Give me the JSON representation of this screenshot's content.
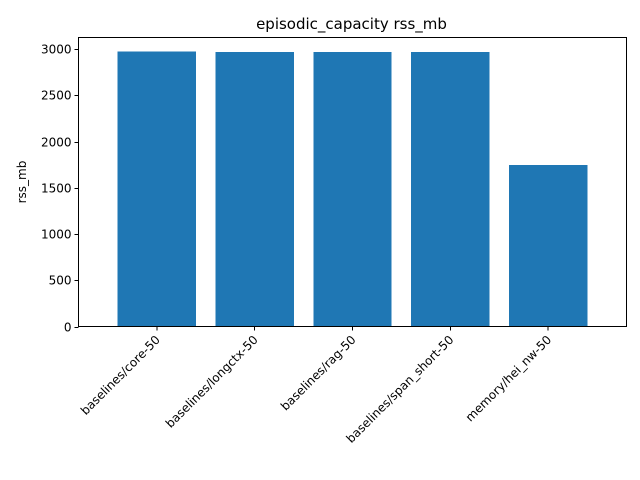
{
  "chart_data": {
    "type": "bar",
    "title": "episodic_capacity rss_mb",
    "xlabel": "",
    "ylabel": "rss_mb",
    "categories": [
      "baselines/core-50",
      "baselines/longctx-50",
      "baselines/rag-50",
      "baselines/span_short-50",
      "memory/hei_nw-50"
    ],
    "values": [
      2975,
      2967,
      2967,
      2967,
      1745
    ],
    "ylim": [
      0,
      3125
    ],
    "yticks": [
      0,
      500,
      1000,
      1500,
      2000,
      2500,
      3000
    ],
    "bar_color": "#1f77b4",
    "grid": false,
    "legend": "none"
  }
}
